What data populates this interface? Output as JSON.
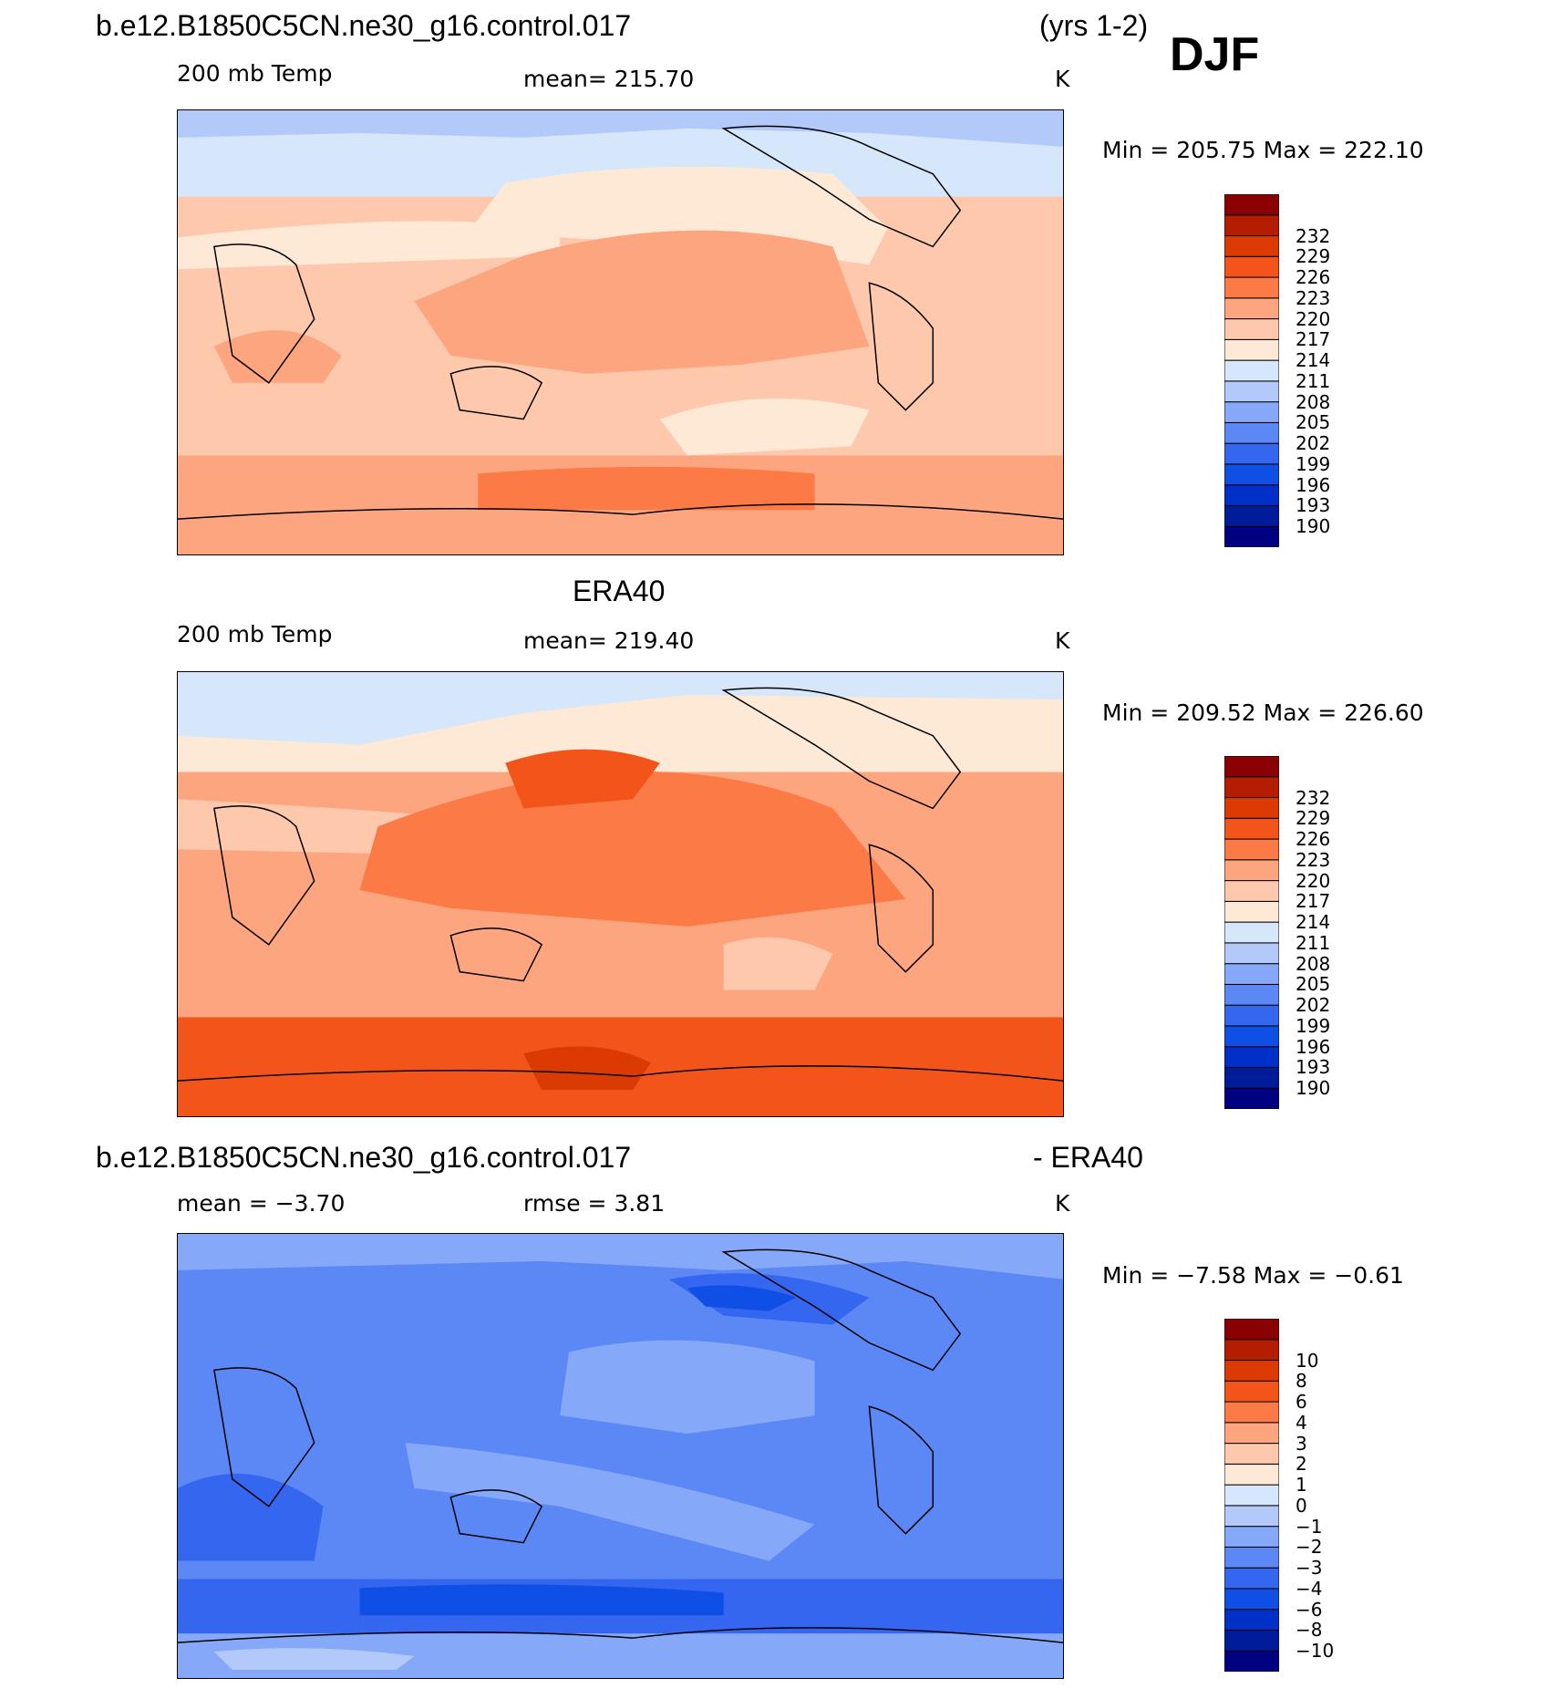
{
  "header": {
    "case_name": "b.e12.B1850C5CN.ne30_g16.control.017",
    "years": "(yrs 1-2)",
    "season": "DJF"
  },
  "panels": [
    {
      "id": "model",
      "title": "",
      "variable": "200 mb Temp",
      "mean_text": "mean= 215.70",
      "units": "K",
      "minmax_text": "Min = 205.75 Max = 222.10"
    },
    {
      "id": "obs",
      "title": "ERA40",
      "variable": "200 mb Temp",
      "mean_text": "mean= 219.40",
      "units": "K",
      "minmax_text": "Min = 209.52 Max = 226.60"
    },
    {
      "id": "diff",
      "title_left": "b.e12.B1850C5CN.ne30_g16.control.017",
      "title_right": "- ERA40",
      "mean_text": "mean =   −3.70",
      "rmse_text": "rmse =    3.81",
      "units": "K",
      "minmax_text": "Min =  −7.58 Max =  −0.61"
    }
  ],
  "colors": {
    "colorbar_palette": [
      "#000080",
      "#001c9a",
      "#0030c8",
      "#0f4fe6",
      "#3466f0",
      "#5b88f5",
      "#85a9f8",
      "#b3c9fa",
      "#d6e6fb",
      "#fde9d6",
      "#fdc8ac",
      "#fca57e",
      "#fc7a45",
      "#f2541a",
      "#dc3a03",
      "#b41d00",
      "#8b0000"
    ]
  },
  "chart_data": [
    {
      "type": "heatmap",
      "name": "model 200 mb Temp",
      "units": "K",
      "colorbar_levels": [
        "190",
        "193",
        "196",
        "199",
        "202",
        "205",
        "208",
        "211",
        "214",
        "217",
        "220",
        "223",
        "226",
        "229",
        "232"
      ],
      "min": 205.75,
      "max": 222.1,
      "mean": 215.7
    },
    {
      "type": "heatmap",
      "name": "ERA40 200 mb Temp",
      "units": "K",
      "colorbar_levels": [
        "190",
        "193",
        "196",
        "199",
        "202",
        "205",
        "208",
        "211",
        "214",
        "217",
        "220",
        "223",
        "226",
        "229",
        "232"
      ],
      "min": 209.52,
      "max": 226.6,
      "mean": 219.4
    },
    {
      "type": "heatmap",
      "name": "model - ERA40",
      "units": "K",
      "colorbar_levels": [
        "−10",
        "−8",
        "−6",
        "−4",
        "−3",
        "−2",
        "−1",
        "0",
        "1",
        "2",
        "3",
        "4",
        "6",
        "8",
        "10"
      ],
      "min": -7.58,
      "max": -0.61,
      "mean": -3.7,
      "rmse": 3.81
    }
  ]
}
